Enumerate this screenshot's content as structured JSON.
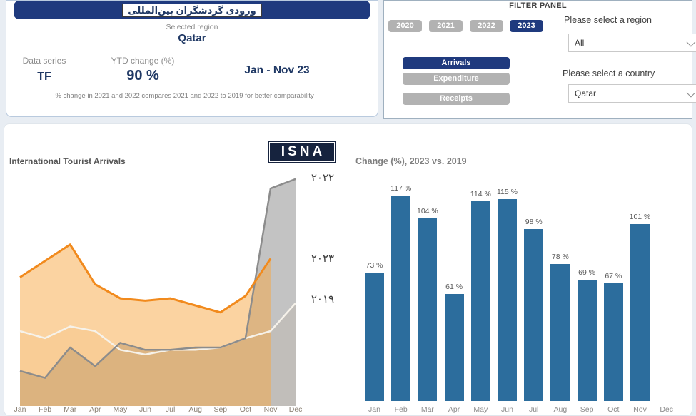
{
  "colors": {
    "navy": "#1f3a7e",
    "text_navy": "#1f3864",
    "bar_blue": "#2c6d9d",
    "orange_line": "#f18a1d",
    "gray_line": "#8c8c8c",
    "button_gray": "#b2b2b2"
  },
  "kpi_card": {
    "title_fa": "ورودی گردشگران بین‌المللی",
    "selected_region_label": "Selected region",
    "selected_region_value": "Qatar",
    "data_series_label": "Data series",
    "data_series_value": "TF",
    "ytd_label": "YTD change (%)",
    "ytd_value": "90 %",
    "period": "Jan - Nov 23",
    "footnote": "% change in 2021 and 2022 compares 2021 and 2022  to 2019 for better comparability"
  },
  "filter_panel": {
    "title": "FILTER PANEL",
    "years": [
      {
        "label": "2020",
        "selected": false
      },
      {
        "label": "2021",
        "selected": false
      },
      {
        "label": "2022",
        "selected": false
      },
      {
        "label": "2023",
        "selected": true
      }
    ],
    "metrics": [
      {
        "label": "Arrivals",
        "selected": true
      },
      {
        "label": "Expenditure",
        "selected": false
      },
      {
        "label": "Receipts",
        "selected": false
      }
    ],
    "region": {
      "label": "Please select a region",
      "value": "All"
    },
    "country": {
      "label": "Please select a country",
      "value": "Qatar"
    }
  },
  "main": {
    "logo_text": "ISNA",
    "left_chart_title": "International Tourist Arrivals",
    "right_chart_title": "Change (%), 2023 vs. 2019"
  },
  "chart_data": [
    {
      "type": "area",
      "title": "International Tourist Arrivals",
      "xlabel": "",
      "ylabel": "",
      "note": "No y-axis shown; values are estimated relative levels (0-100 = plot height). 2023 series ends at Nov.",
      "categories": [
        "Jan",
        "Feb",
        "Mar",
        "Apr",
        "May",
        "Jun",
        "Jul",
        "Aug",
        "Sep",
        "Oct",
        "Nov",
        "Dec"
      ],
      "series": [
        {
          "name": "2019",
          "label_fa": "۲۰۱۹",
          "line_color": "#f6f2ea",
          "fill_color": "#faf3e8",
          "fill_opacity": 1,
          "line_width": 2.5,
          "values": [
            32,
            29,
            34,
            32,
            24,
            22,
            24,
            24,
            25,
            29,
            32,
            44
          ]
        },
        {
          "name": "2022",
          "label_fa": "۲۰۲۲",
          "line_color": "#8c8c8c",
          "fill_color": "#9b9b9b",
          "fill_opacity": 0.6,
          "line_width": 2.5,
          "values": [
            15,
            12,
            25,
            17,
            27,
            24,
            24,
            25,
            25,
            29,
            93,
            97
          ]
        },
        {
          "name": "2023",
          "label_fa": "۲۰۲۳",
          "line_color": "#f18a1d",
          "fill_color": "#f7a843",
          "fill_opacity": 0.5,
          "line_width": 3,
          "values": [
            55,
            62,
            69,
            52,
            46,
            45,
            46,
            43,
            40,
            47,
            63
          ]
        }
      ],
      "legend_position": "right",
      "grid": false
    },
    {
      "type": "bar",
      "title": "Change (%), 2023 vs. 2019",
      "xlabel": "",
      "ylabel": "",
      "categories": [
        "Jan",
        "Feb",
        "Mar",
        "Apr",
        "May",
        "Jun",
        "Jul",
        "Aug",
        "Sep",
        "Oct",
        "Nov",
        "Dec"
      ],
      "values": [
        73,
        117,
        104,
        61,
        114,
        115,
        98,
        78,
        69,
        67,
        101,
        null
      ],
      "label_suffix": " %",
      "ylim": [
        0,
        130
      ],
      "grid": false
    }
  ]
}
